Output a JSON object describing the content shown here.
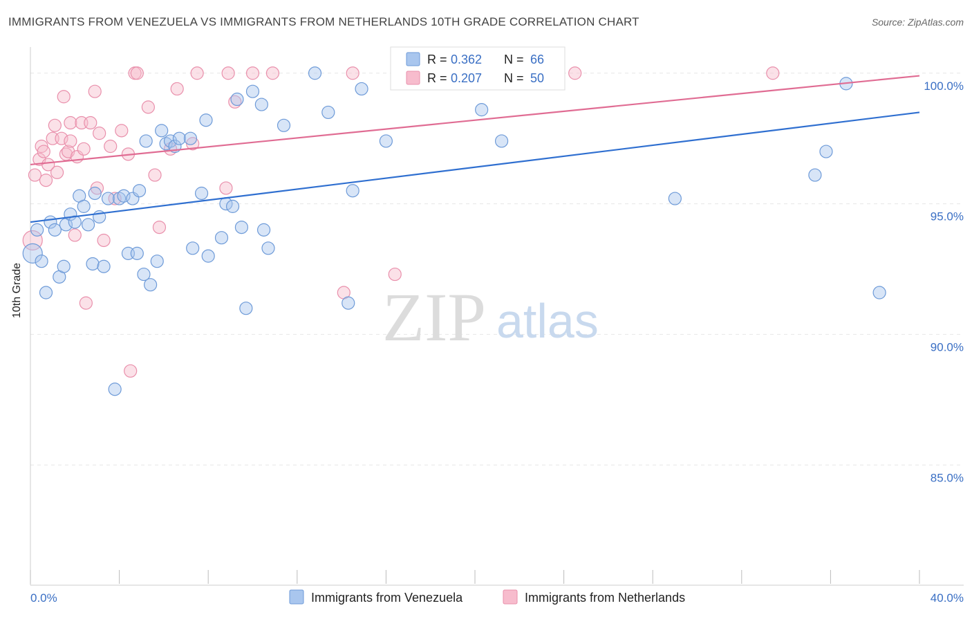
{
  "header": {
    "title": "IMMIGRANTS FROM VENEZUELA VS IMMIGRANTS FROM NETHERLANDS 10TH GRADE CORRELATION CHART",
    "source": "Source: ZipAtlas.com"
  },
  "watermark": {
    "zip": "ZIP",
    "atlas": "atlas"
  },
  "legend": {
    "r_label": "R =",
    "n_label": "N =",
    "series": [
      {
        "r": "0.362",
        "n": "66"
      },
      {
        "r": "0.207",
        "n": "50"
      }
    ]
  },
  "colors": {
    "venezuela_fill": "#a9c6ee",
    "venezuela_stroke": "#6d9ad8",
    "venezuela_line": "#2f6fd0",
    "netherlands_fill": "#f7bccd",
    "netherlands_stroke": "#e98fab",
    "netherlands_line": "#e06c93",
    "value_text": "#3a6fc4"
  },
  "chart_data": {
    "type": "scatter",
    "title": "IMMIGRANTS FROM VENEZUELA VS IMMIGRANTS FROM NETHERLANDS 10TH GRADE CORRELATION CHART",
    "xlabel": "",
    "ylabel": "10th Grade",
    "xlim": [
      0,
      40
    ],
    "ylim": [
      80.4,
      101.0
    ],
    "x_tick_labels": [
      "0.0%",
      "40.0%"
    ],
    "y_ticks": [
      85,
      90,
      95,
      100
    ],
    "y_tick_labels": [
      "85.0%",
      "90.0%",
      "95.0%",
      "100.0%"
    ],
    "grid": true,
    "legend_position": "top-center",
    "series": [
      {
        "name": "Immigrants from Venezuela",
        "r": 0.362,
        "n": 66,
        "trend": {
          "x": [
            0,
            40
          ],
          "y": [
            94.3,
            98.5
          ]
        },
        "points": [
          [
            0.1,
            93.1
          ],
          [
            0.3,
            94.0
          ],
          [
            0.5,
            92.8
          ],
          [
            0.7,
            91.6
          ],
          [
            0.9,
            94.3
          ],
          [
            1.1,
            94.0
          ],
          [
            1.3,
            92.2
          ],
          [
            1.5,
            92.6
          ],
          [
            1.6,
            94.2
          ],
          [
            1.8,
            94.6
          ],
          [
            2.0,
            94.3
          ],
          [
            2.2,
            95.3
          ],
          [
            2.4,
            94.9
          ],
          [
            2.6,
            94.2
          ],
          [
            2.8,
            92.7
          ],
          [
            2.9,
            95.4
          ],
          [
            3.1,
            94.5
          ],
          [
            3.3,
            92.6
          ],
          [
            3.5,
            95.2
          ],
          [
            3.8,
            87.9
          ],
          [
            4.0,
            95.2
          ],
          [
            4.2,
            95.3
          ],
          [
            4.4,
            93.1
          ],
          [
            4.6,
            95.2
          ],
          [
            4.8,
            93.1
          ],
          [
            4.9,
            95.5
          ],
          [
            5.1,
            92.3
          ],
          [
            5.2,
            97.4
          ],
          [
            5.4,
            91.9
          ],
          [
            5.7,
            92.8
          ],
          [
            5.9,
            97.8
          ],
          [
            6.1,
            97.3
          ],
          [
            6.3,
            97.4
          ],
          [
            6.5,
            97.2
          ],
          [
            6.7,
            97.5
          ],
          [
            7.2,
            97.5
          ],
          [
            7.3,
            93.3
          ],
          [
            7.7,
            95.4
          ],
          [
            7.9,
            98.2
          ],
          [
            8.0,
            93.0
          ],
          [
            8.6,
            93.7
          ],
          [
            8.8,
            95.0
          ],
          [
            9.1,
            94.9
          ],
          [
            9.3,
            99.0
          ],
          [
            9.5,
            94.1
          ],
          [
            9.7,
            91.0
          ],
          [
            10.0,
            99.3
          ],
          [
            10.4,
            98.8
          ],
          [
            10.5,
            94.0
          ],
          [
            10.7,
            93.3
          ],
          [
            11.4,
            98.0
          ],
          [
            12.8,
            100.0
          ],
          [
            13.4,
            98.5
          ],
          [
            14.3,
            91.2
          ],
          [
            14.5,
            95.5
          ],
          [
            14.9,
            99.4
          ],
          [
            16.0,
            97.4
          ],
          [
            17.2,
            100.0
          ],
          [
            20.3,
            98.6
          ],
          [
            21.2,
            97.4
          ],
          [
            29.0,
            95.2
          ],
          [
            35.3,
            96.1
          ],
          [
            35.8,
            97.0
          ],
          [
            36.7,
            99.6
          ],
          [
            38.2,
            91.6
          ],
          [
            23.0,
            100.0
          ]
        ]
      },
      {
        "name": "Immigrants from Netherlands",
        "r": 0.207,
        "n": 50,
        "trend": {
          "x": [
            0,
            40
          ],
          "y": [
            96.5,
            99.9
          ]
        },
        "points": [
          [
            0.1,
            93.6
          ],
          [
            0.2,
            96.1
          ],
          [
            0.4,
            96.7
          ],
          [
            0.5,
            97.2
          ],
          [
            0.6,
            97.0
          ],
          [
            0.7,
            95.9
          ],
          [
            0.8,
            96.5
          ],
          [
            1.0,
            97.5
          ],
          [
            1.1,
            98.0
          ],
          [
            1.2,
            96.2
          ],
          [
            1.4,
            97.5
          ],
          [
            1.5,
            99.1
          ],
          [
            1.6,
            96.9
          ],
          [
            1.7,
            97.0
          ],
          [
            1.8,
            97.4
          ],
          [
            1.8,
            98.1
          ],
          [
            2.0,
            93.8
          ],
          [
            2.1,
            96.8
          ],
          [
            2.3,
            98.1
          ],
          [
            2.4,
            97.1
          ],
          [
            2.5,
            91.2
          ],
          [
            2.7,
            98.1
          ],
          [
            2.9,
            99.3
          ],
          [
            3.0,
            95.6
          ],
          [
            3.1,
            97.7
          ],
          [
            3.3,
            93.6
          ],
          [
            3.6,
            97.2
          ],
          [
            3.8,
            95.2
          ],
          [
            4.1,
            97.8
          ],
          [
            4.4,
            96.9
          ],
          [
            4.5,
            88.6
          ],
          [
            4.7,
            100.0
          ],
          [
            4.8,
            100.0
          ],
          [
            5.3,
            98.7
          ],
          [
            5.6,
            96.1
          ],
          [
            5.8,
            94.1
          ],
          [
            6.3,
            97.1
          ],
          [
            6.6,
            99.4
          ],
          [
            7.3,
            97.3
          ],
          [
            7.5,
            100.0
          ],
          [
            8.8,
            95.6
          ],
          [
            8.9,
            100.0
          ],
          [
            9.2,
            98.9
          ],
          [
            10.0,
            100.0
          ],
          [
            10.9,
            100.0
          ],
          [
            14.1,
            91.6
          ],
          [
            14.5,
            100.0
          ],
          [
            16.4,
            92.3
          ],
          [
            24.5,
            100.0
          ],
          [
            33.4,
            100.0
          ]
        ]
      }
    ]
  },
  "bottom_legend": {
    "items": [
      "Immigrants from Venezuela",
      "Immigrants from Netherlands"
    ]
  },
  "axis": {
    "x_min_label": "0.0%",
    "x_max_label": "40.0%",
    "y_label": "10th Grade"
  }
}
